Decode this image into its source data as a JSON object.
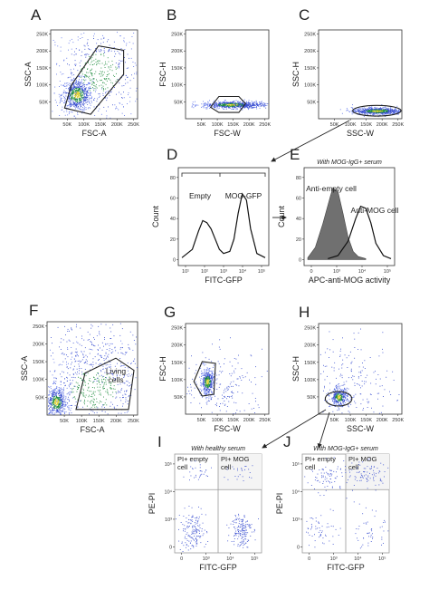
{
  "figure": {
    "panel_letters": [
      "A",
      "B",
      "C",
      "D",
      "E",
      "F",
      "G",
      "H",
      "I",
      "J"
    ],
    "gate_labels": [
      "Living cells"
    ],
    "colors": {
      "dense": "#1a8a3a",
      "mid": "#3a4fd0",
      "sparse": "#5a70e8",
      "hot": "#e0d030",
      "fill_gray": "#707070",
      "line": "#111111"
    }
  },
  "chart_data": [
    {
      "panel": "A",
      "type": "scatter",
      "xlabel": "FSC-A",
      "ylabel": "SSC-A",
      "xticks": [
        "50K",
        "100K",
        "150K",
        "200K",
        "250K"
      ],
      "yticks": [
        "50K",
        "100K",
        "150K",
        "200K",
        "250K"
      ],
      "xlim": [
        0,
        262144
      ],
      "ylim": [
        0,
        262144
      ],
      "gate": "polygon"
    },
    {
      "panel": "B",
      "type": "scatter",
      "xlabel": "FSC-W",
      "ylabel": "FSC-H",
      "xticks": [
        "50K",
        "100K",
        "150K",
        "200K",
        "250K"
      ],
      "yticks": [
        "50K",
        "100K",
        "150K",
        "200K",
        "250K"
      ],
      "xlim": [
        0,
        262144
      ],
      "ylim": [
        0,
        262144
      ],
      "gate": "polygon"
    },
    {
      "panel": "C",
      "type": "scatter",
      "xlabel": "SSC-W",
      "ylabel": "SSC-H",
      "xticks": [
        "50K",
        "100K",
        "150K",
        "200K",
        "250K"
      ],
      "yticks": [
        "50K",
        "100K",
        "150K",
        "200K",
        "250K"
      ],
      "xlim": [
        0,
        262144
      ],
      "ylim": [
        0,
        262144
      ],
      "gate": "ellipse"
    },
    {
      "panel": "D",
      "type": "line",
      "xlabel": "FITC-GFP",
      "ylabel": "Count",
      "xticks": [
        "10¹",
        "10²",
        "10³",
        "10⁴",
        "10⁵"
      ],
      "yticks": [
        "0",
        "20",
        "40",
        "60",
        "80"
      ],
      "ylim": [
        0,
        80
      ],
      "annotations": [
        "Empty",
        "MOG-GFP"
      ],
      "series": [
        {
          "x": [
            1.0,
            1.5,
            1.8,
            2.0,
            2.2,
            2.4,
            2.6,
            2.8,
            3.0,
            3.3,
            3.5,
            3.7,
            3.9,
            4.1,
            4.3,
            4.6,
            5.0
          ],
          "y": [
            2,
            10,
            28,
            38,
            36,
            30,
            20,
            10,
            6,
            8,
            20,
            45,
            64,
            58,
            30,
            6,
            2
          ]
        }
      ]
    },
    {
      "panel": "E",
      "type": "area",
      "title": "With MOG-IgG+ serum",
      "xlabel": "APC-anti-MOG activity",
      "ylabel": "Count",
      "xticks": [
        "0",
        "10³",
        "10⁴",
        "10⁵"
      ],
      "yticks": [
        "0",
        "20",
        "40",
        "60",
        "80"
      ],
      "ylim": [
        0,
        80
      ],
      "annotations": [
        "Anti-empty cell",
        "Anti-MOG cell"
      ],
      "series": [
        {
          "name": "Anti-empty cell",
          "x": [
            0.0,
            0.3,
            0.6,
            0.9,
            1.0,
            1.2,
            1.4,
            1.6,
            1.8,
            2.0,
            2.3
          ],
          "y": [
            2,
            12,
            35,
            62,
            70,
            66,
            45,
            22,
            8,
            3,
            1
          ]
        },
        {
          "name": "Anti-MOG cell",
          "x": [
            0.8,
            1.2,
            1.6,
            1.9,
            2.1,
            2.3,
            2.5,
            2.7,
            3.0,
            3.3
          ],
          "y": [
            1,
            4,
            18,
            40,
            52,
            50,
            36,
            16,
            4,
            1
          ]
        }
      ]
    },
    {
      "panel": "F",
      "type": "scatter",
      "xlabel": "FSC-A",
      "ylabel": "SSC-A",
      "xticks": [
        "50K",
        "100K",
        "150K",
        "200K",
        "250K"
      ],
      "yticks": [
        "50K",
        "100K",
        "150K",
        "200K",
        "250K"
      ],
      "xlim": [
        0,
        262144
      ],
      "ylim": [
        0,
        262144
      ],
      "gate": "polygon"
    },
    {
      "panel": "G",
      "type": "scatter",
      "xlabel": "FSC-W",
      "ylabel": "FSC-H",
      "xticks": [
        "50K",
        "100K",
        "150K",
        "200K",
        "250K"
      ],
      "yticks": [
        "50K",
        "100K",
        "150K",
        "200K",
        "250K"
      ],
      "xlim": [
        0,
        262144
      ],
      "ylim": [
        0,
        262144
      ],
      "gate": "polygon"
    },
    {
      "panel": "H",
      "type": "scatter",
      "xlabel": "SSC-W",
      "ylabel": "SSC-H",
      "xticks": [
        "50K",
        "100K",
        "150K",
        "200K",
        "250K"
      ],
      "yticks": [
        "50K",
        "100K",
        "150K",
        "200K",
        "250K"
      ],
      "xlim": [
        0,
        262144
      ],
      "ylim": [
        0,
        262144
      ],
      "gate": "ellipse"
    },
    {
      "panel": "I",
      "type": "scatter",
      "title": "With healthy serum",
      "xlabel": "FITC-GFP",
      "ylabel": "PE-PI",
      "xticks": [
        "0",
        "10³",
        "10⁴",
        "10⁵"
      ],
      "yticks": [
        "0",
        "10³",
        "10⁴",
        "10⁵"
      ],
      "quadrants": [
        "PI+ empty cell",
        "PI+ MOG cell"
      ]
    },
    {
      "panel": "J",
      "type": "scatter",
      "title": "With MOG-IgG+ serum",
      "xlabel": "FITC-GFP",
      "ylabel": "PE-PI",
      "xticks": [
        "0",
        "10³",
        "10⁴",
        "10⁵"
      ],
      "yticks": [
        "0",
        "10³",
        "10⁴",
        "10⁵"
      ],
      "quadrants": [
        "PI+ empty cell",
        "PI+ MOG cell"
      ]
    }
  ]
}
